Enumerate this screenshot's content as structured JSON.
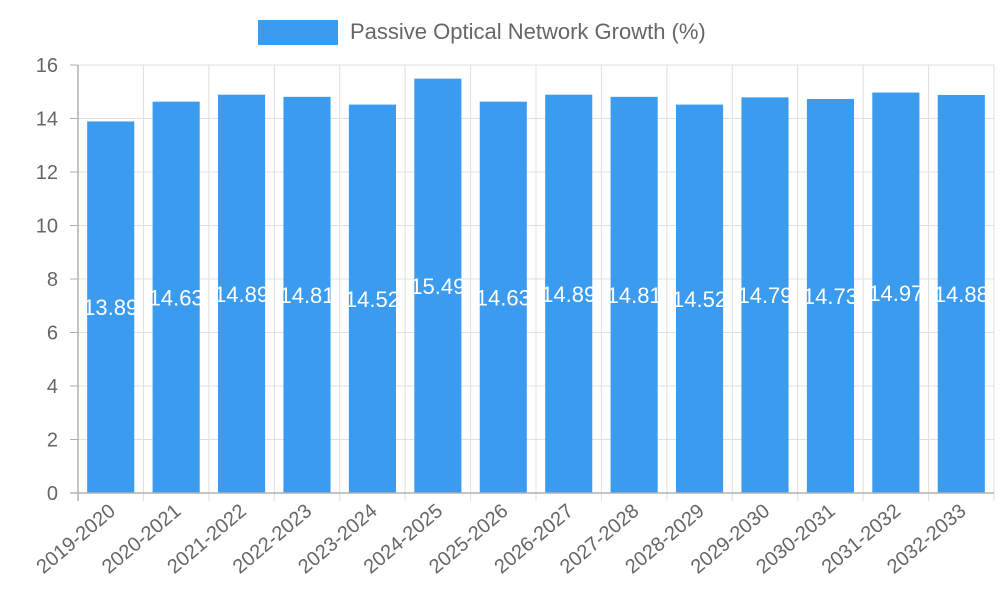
{
  "chart_data": {
    "type": "bar",
    "title": "",
    "legend": [
      {
        "label": "Passive Optical Network Growth (%)",
        "color": "#3a9bef"
      }
    ],
    "legend_position": "top",
    "categories": [
      "2019-2020",
      "2020-2021",
      "2021-2022",
      "2022-2023",
      "2023-2024",
      "2024-2025",
      "2025-2026",
      "2026-2027",
      "2027-2028",
      "2028-2029",
      "2029-2030",
      "2030-2031",
      "2031-2032",
      "2032-2033"
    ],
    "series": [
      {
        "name": "Passive Optical Network Growth (%)",
        "color": "#3a9bef",
        "values": [
          13.89,
          14.63,
          14.89,
          14.81,
          14.52,
          15.49,
          14.63,
          14.89,
          14.81,
          14.52,
          14.79,
          14.73,
          14.97,
          14.88
        ]
      }
    ],
    "data_labels": [
      "13.89",
      "14.63",
      "14.89",
      "14.81",
      "14.52",
      "15.49",
      "14.63",
      "14.89",
      "14.81",
      "14.52",
      "14.79",
      "14.73",
      "14.97",
      "14.88"
    ],
    "xlabel": "",
    "ylabel": "",
    "ylim": [
      0,
      16
    ],
    "yticks": [
      0,
      2,
      4,
      6,
      8,
      10,
      12,
      14,
      16
    ],
    "grid": true
  },
  "legend": {
    "label": "Passive Optical Network Growth (%)"
  }
}
